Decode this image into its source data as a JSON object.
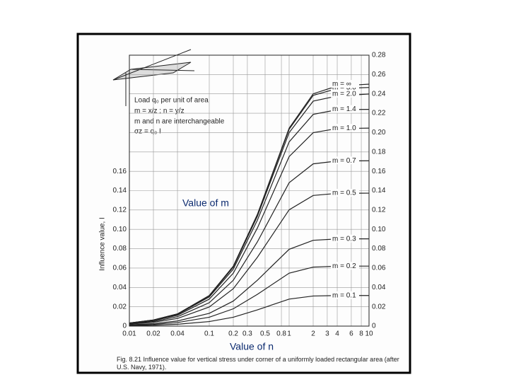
{
  "chart_data": {
    "type": "line",
    "title": "Fig. 8.21  Influence value for vertical stress under corner of a uniformly loaded rectangular area (after U.S. Navy, 1971).",
    "x_label": "Value of n",
    "y_label": "Influence value, I",
    "curve_label": "Value of m",
    "notes": [
      "Load q₀ per unit of area",
      "m = x/z ; n = y/z",
      "m and n are interchangeable",
      "σz = q₀ I"
    ],
    "x": [
      0.01,
      0.02,
      0.04,
      0.1,
      0.2,
      0.4,
      1,
      2,
      4,
      10
    ],
    "xlim": [
      0.01,
      10
    ],
    "log_x": true,
    "xticks": [
      0.01,
      0.02,
      0.04,
      0.1,
      0.2,
      0.3,
      0.5,
      0.8,
      1,
      2,
      3,
      4,
      6,
      8,
      10
    ],
    "ylim": [
      0,
      0.28
    ],
    "yticks": [
      0,
      0.02,
      0.04,
      0.06,
      0.08,
      {
        "value": 0.1,
        "label": "0.10"
      },
      0.12,
      0.14,
      0.16,
      0.18,
      {
        "value": 0.2,
        "label": "0.20"
      },
      0.22,
      0.24,
      0.26,
      0.28
    ],
    "grid": true,
    "series": [
      {
        "name": "m = 0.1",
        "color": "#222",
        "values": [
          0.0005,
          0.0009,
          0.0019,
          0.0047,
          0.0092,
          0.0168,
          0.0279,
          0.0311,
          0.0316,
          0.0316
        ]
      },
      {
        "name": "m = 0.2",
        "color": "#222",
        "values": [
          0.0009,
          0.0018,
          0.0037,
          0.0092,
          0.0179,
          0.0328,
          0.0547,
          0.061,
          0.062,
          0.062
        ]
      },
      {
        "name": "m = 0.3",
        "color": "#222",
        "values": [
          0.0013,
          0.0026,
          0.0053,
          0.0132,
          0.0259,
          0.0474,
          0.0794,
          0.0887,
          0.0901,
          0.0902
        ]
      },
      {
        "name": "m = 0.5",
        "color": "#222",
        "values": [
          0.002,
          0.004,
          0.0079,
          0.0198,
          0.0387,
          0.0711,
          0.1202,
          0.135,
          0.1372,
          0.1374
        ]
      },
      {
        "name": "m = 0.7",
        "color": "#222",
        "values": [
          0.0024,
          0.0048,
          0.0097,
          0.0242,
          0.0474,
          0.087,
          0.1482,
          0.1677,
          0.1706,
          0.1709
        ]
      },
      {
        "name": "m = 1.0",
        "color": "#222",
        "values": [
          0.0028,
          0.0056,
          0.0112,
          0.0279,
          0.0547,
          0.1013,
          0.1752,
          0.1999,
          0.2042,
          0.2046
        ]
      },
      {
        "name": "m = 1.4",
        "color": "#222",
        "values": [
          0.003,
          0.006,
          0.012,
          0.0301,
          0.0589,
          0.1094,
          0.1904,
          0.2188,
          0.2236,
          0.224
        ]
      },
      {
        "name": "m = 2.0",
        "color": "#222",
        "values": [
          0.0031,
          0.0062,
          0.0124,
          0.0311,
          0.061,
          0.1134,
          0.1999,
          0.2325,
          0.2378,
          0.2399
        ]
      },
      {
        "name": "m = 3.0",
        "color": "#222",
        "values": [
          0.0032,
          0.0063,
          0.0126,
          0.0315,
          0.0618,
          0.115,
          0.2034,
          0.2385,
          0.2455,
          0.2466
        ]
      },
      {
        "name": "m = ∞",
        "color": "#222",
        "values": [
          0.0032,
          0.0063,
          0.0126,
          0.0316,
          0.062,
          0.1154,
          0.2046,
          0.2401,
          0.2482,
          0.25
        ]
      }
    ]
  }
}
